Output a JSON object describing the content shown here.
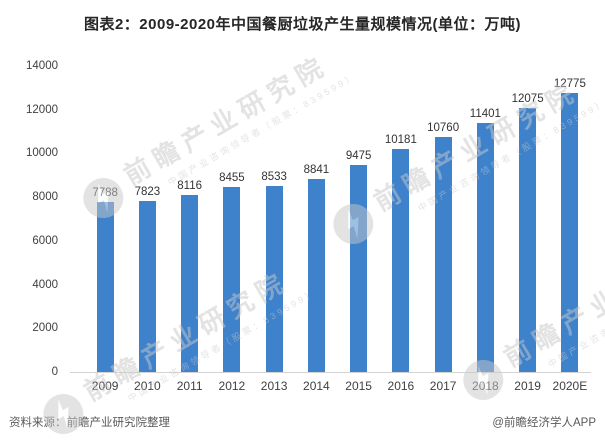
{
  "title": "图表2：2009-2020年中国餐厨垃圾产生量规模情况(单位：万吨)",
  "chart_data": {
    "type": "bar",
    "categories": [
      "2009",
      "2010",
      "2011",
      "2012",
      "2013",
      "2014",
      "2015",
      "2016",
      "2017",
      "2018",
      "2019",
      "2020E"
    ],
    "values": [
      7788,
      7823,
      8116,
      8455,
      8533,
      8841,
      9475,
      10181,
      10760,
      11401,
      12075,
      12775
    ],
    "title": "图表2：2009-2020年中国餐厨垃圾产生量规模情况(单位：万吨)",
    "xlabel": "",
    "ylabel": "",
    "ylim": [
      0,
      14000
    ],
    "yticks": [
      0,
      2000,
      4000,
      6000,
      8000,
      10000,
      12000,
      14000
    ],
    "bar_color": "#3E82CC",
    "grid": false,
    "legend": false,
    "value_labels": true
  },
  "watermark": {
    "brand": "前瞻产业研究院",
    "tagline": "中国产业咨询领导者（股票：839599）",
    "logo": "qianzhan-logo"
  },
  "footer": {
    "source": "资料来源：前瞻产业研究院整理",
    "credit": "@前瞻经济学人APP"
  },
  "colors": {
    "bar": "#3E82CC",
    "title_text": "#262626",
    "axis_text": "#404040",
    "value_label_text": "#333333",
    "axis_line": "#d3d3d3",
    "footer_text": "#595959",
    "watermark": "#c9c9c9"
  }
}
